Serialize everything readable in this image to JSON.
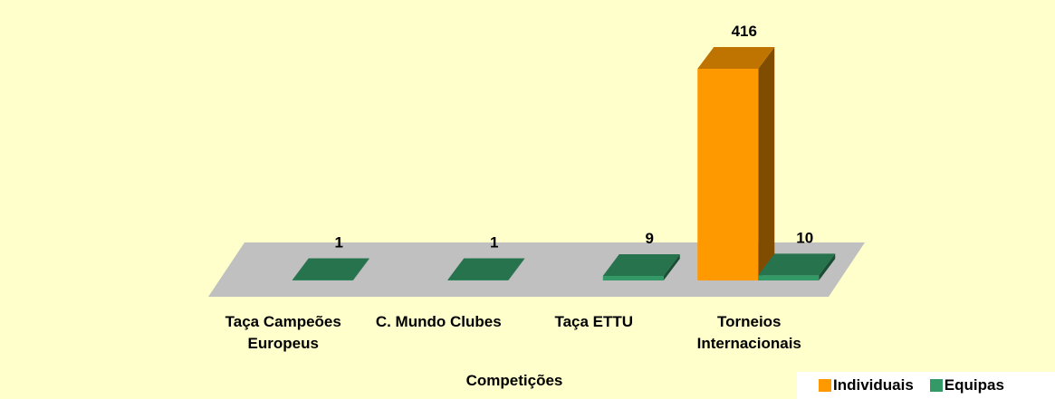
{
  "chart_data": {
    "type": "bar3d",
    "x_label": "Competições",
    "categories": [
      "Taça Campeões Europeus",
      "C. Mundo Clubes",
      "Taça ETTU",
      "Torneios Internacionais"
    ],
    "series": [
      {
        "name": "Individuais",
        "color": "#ff9900",
        "values": [
          null,
          null,
          null,
          416
        ]
      },
      {
        "name": "Equipas",
        "color": "#339966",
        "values": [
          1,
          1,
          9,
          10
        ]
      }
    ],
    "legend": "bottom-right"
  }
}
